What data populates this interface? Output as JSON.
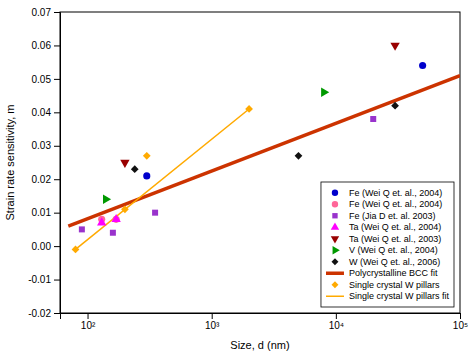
{
  "chart_data": {
    "type": "scatter",
    "xlabel": "Size, d (nm)",
    "ylabel": "Strain rate sensitivity, m",
    "log": "x",
    "grid": false,
    "legend": "lower right",
    "xlim": [
      60,
      100000
    ],
    "xticks": [
      {
        "value": 100,
        "label": "10²"
      },
      {
        "value": 1000,
        "label": "10³"
      },
      {
        "value": 10000,
        "label": "10⁴"
      },
      {
        "value": 100000,
        "label": "10⁵"
      }
    ],
    "ylim": [
      -0.02,
      0.07
    ],
    "yticks": [
      -0.02,
      -0.01,
      {
        "value": 0,
        "label": "0.00"
      },
      0.01,
      0.02,
      0.03,
      0.04,
      0.05,
      0.06,
      0.07
    ],
    "series": [
      {
        "name": "Fe (Wei Q et. al., 2004)",
        "color": "#0000cc",
        "marker": "circle",
        "x": [
          300,
          50000
        ],
        "values": [
          0.021,
          0.054
        ]
      },
      {
        "name": "Fe (Wei Q et. al., 2004)",
        "color": "#ff6699",
        "marker": "circle",
        "x": [
          130,
          170
        ],
        "values": [
          0.008,
          0.008
        ]
      },
      {
        "name": "Fe (Jia D et. al. 2003)",
        "color": "#9933cc",
        "marker": "square",
        "x": [
          90,
          160,
          350,
          20000
        ],
        "values": [
          0.005,
          0.004,
          0.01,
          0.038
        ]
      },
      {
        "name": "Ta (Wei Q et. al., 2004)",
        "color": "#ff00ff",
        "marker": "triangle-up",
        "x": [
          130,
          170
        ],
        "values": [
          0.007,
          0.008
        ]
      },
      {
        "name": "Ta (Wei Q et. al., 2003)",
        "color": "#990000",
        "marker": "triangle-down",
        "x": [
          200,
          30000
        ],
        "values": [
          0.025,
          0.06
        ]
      },
      {
        "name": "V (Wei Q et. al., 2004)",
        "color": "#009900",
        "marker": "triangle-right",
        "x": [
          140,
          8000
        ],
        "values": [
          0.014,
          0.046
        ]
      },
      {
        "name": "W (Wei Q et. al., 2006)",
        "color": "#111111",
        "marker": "diamond",
        "x": [
          240,
          5000,
          30000
        ],
        "values": [
          0.023,
          0.027,
          0.042
        ]
      },
      {
        "name": "Polycrystalline BCC fit",
        "type": "line",
        "line_style": "solid",
        "color": "#cc3300",
        "x": [
          70,
          100000
        ],
        "values": [
          0.006,
          0.051
        ]
      },
      {
        "name": "Single crystal W pillars",
        "color": "#ffaa00",
        "marker": "diamond",
        "x": [
          80,
          200,
          300,
          2000
        ],
        "values": [
          -0.001,
          0.011,
          0.027,
          0.041
        ]
      },
      {
        "name": "Single crystal W pillars fit",
        "type": "line",
        "line_style": "solid",
        "color": "#ffaa00",
        "x": [
          80,
          2000
        ],
        "values": [
          -0.001,
          0.041
        ]
      }
    ]
  }
}
